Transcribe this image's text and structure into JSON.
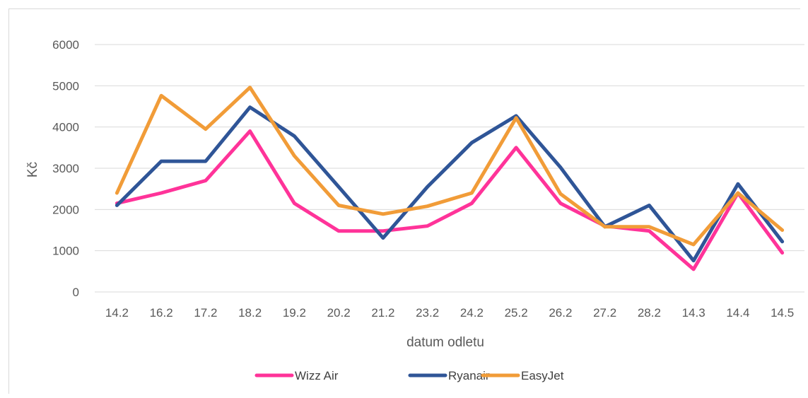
{
  "chart_data": {
    "type": "line",
    "title": "",
    "xlabel": "datum odletu",
    "ylabel": "Kč",
    "categories": [
      "14.2",
      "16.2",
      "17.2",
      "18.2",
      "19.2",
      "20.2",
      "21.2",
      "23.2",
      "24.2",
      "25.2",
      "26.2",
      "27.2",
      "28.2",
      "14.3",
      "14.4",
      "14.5"
    ],
    "yticks": [
      "0",
      "1000",
      "2000",
      "3000",
      "4000",
      "5000",
      "6000"
    ],
    "ylim": [
      0,
      6000
    ],
    "grid": true,
    "legend_position": "bottom",
    "series": [
      {
        "name": "Wizz Air",
        "color": "#ff3399",
        "values": [
          2150,
          2400,
          2700,
          3900,
          2150,
          1480,
          1480,
          1600,
          2150,
          3500,
          2150,
          1600,
          1480,
          550,
          2400,
          950
        ]
      },
      {
        "name": "Ryanair",
        "color": "#2f5597",
        "values": [
          2100,
          3170,
          3170,
          4480,
          3780,
          2550,
          1310,
          2550,
          3620,
          4270,
          3020,
          1580,
          2100,
          760,
          2620,
          1220
        ]
      },
      {
        "name": "EasyJet",
        "color": "#f19c38",
        "values": [
          2400,
          4760,
          3950,
          4960,
          3300,
          2100,
          1890,
          2080,
          2400,
          4220,
          2380,
          1580,
          1580,
          1150,
          2400,
          1500
        ]
      }
    ]
  }
}
